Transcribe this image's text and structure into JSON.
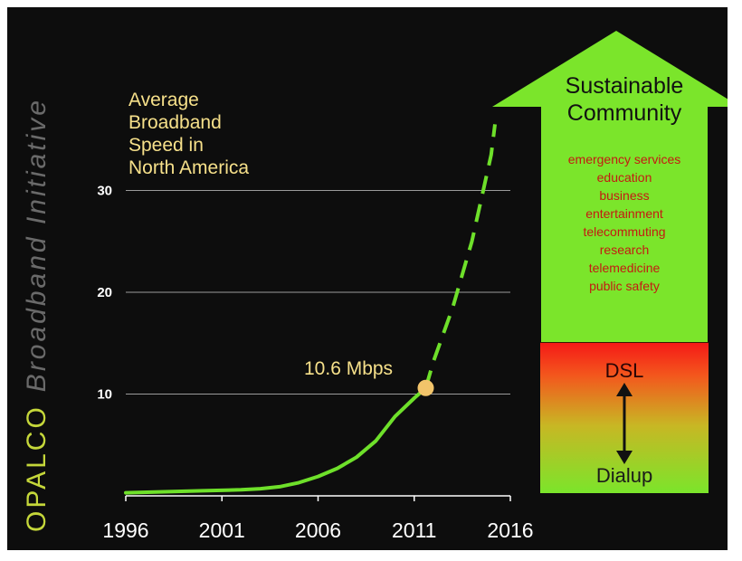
{
  "side_title": {
    "brand": "OPALCO",
    "rest": "Broadband Initiative"
  },
  "chart_title_lines": [
    "Average",
    "Broadband",
    "Speed in",
    "North America"
  ],
  "callout": {
    "label": "10.6 Mbps",
    "x": 2011.6,
    "y": 10.6
  },
  "colors": {
    "curve": "#6ee02a",
    "marker": "#f2c46a",
    "accent_text": "#f6e08a",
    "arrow_green": "#7be52b",
    "benefit_text": "#c41a12"
  },
  "chart_data": {
    "type": "line",
    "title": "Average Broadband Speed in North America",
    "xlabel": "",
    "ylabel": "",
    "x_ticks": [
      1996,
      2001,
      2006,
      2011,
      2016
    ],
    "y_ticks": [
      10,
      20,
      30
    ],
    "xlim": [
      1996,
      2016
    ],
    "ylim": [
      0,
      40
    ],
    "grid": "horizontal at 10, 20, 30",
    "series": [
      {
        "style": "solid",
        "x": [
          1996,
          1998,
          2000,
          2002,
          2003,
          2004,
          2005,
          2006,
          2007,
          2008,
          2009,
          2010,
          2011,
          2011.6
        ],
        "y": [
          0.3,
          0.4,
          0.5,
          0.6,
          0.7,
          0.9,
          1.3,
          1.9,
          2.7,
          3.8,
          5.4,
          7.8,
          9.6,
          10.6
        ]
      },
      {
        "style": "dashed",
        "x": [
          2011.6,
          2012,
          2013,
          2014,
          2015,
          2015.2
        ],
        "y": [
          10.6,
          13.2,
          18.5,
          25.0,
          33.5,
          36.5
        ]
      }
    ]
  },
  "arrow": {
    "title_lines": [
      "Sustainable",
      "Community"
    ],
    "benefits": [
      "emergency services",
      "education",
      "business",
      "entertainment",
      "telecommuting",
      "research",
      "telemedicine",
      "public safety"
    ],
    "upper_label": "DSL",
    "lower_label": "Dialup"
  }
}
